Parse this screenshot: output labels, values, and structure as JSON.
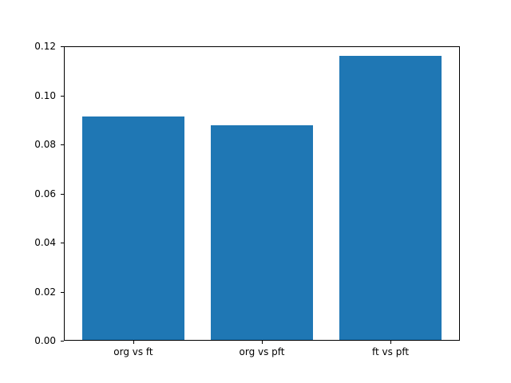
{
  "chart_data": {
    "type": "bar",
    "categories": [
      "org vs ft",
      "org vs pft",
      "ft vs pft"
    ],
    "values": [
      0.0915,
      0.0878,
      0.116
    ],
    "title": "",
    "xlabel": "",
    "ylabel": "",
    "ylim": [
      0,
      0.12
    ],
    "yticks": [
      0,
      0.02,
      0.04,
      0.06,
      0.08,
      0.1,
      0.12
    ],
    "ytick_decimals": 2,
    "bar_color": "#1f77b4",
    "grid": false,
    "legend": null
  }
}
